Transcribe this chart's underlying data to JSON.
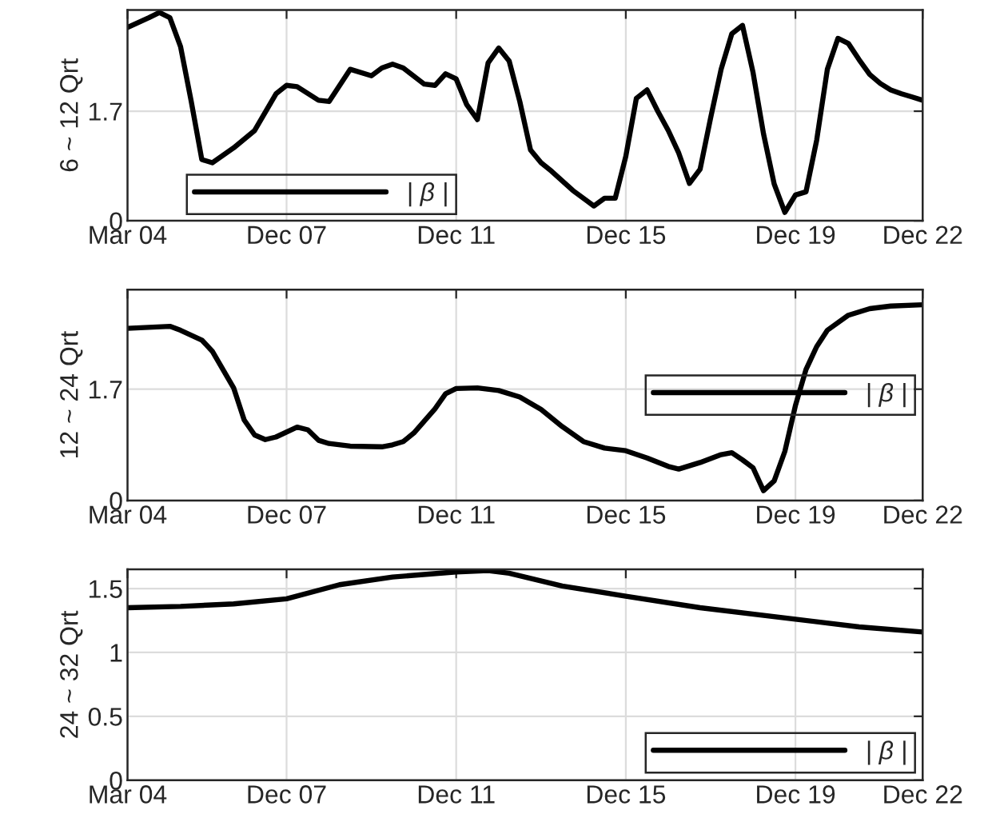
{
  "chart_data": [
    {
      "type": "line",
      "ylabel": "6 ~ 12 Qrt",
      "x": [
        "2004-03",
        "2004-09",
        "2004-12",
        "2005-03",
        "2005-06",
        "2005-09",
        "2005-12",
        "2006-03",
        "2006-09",
        "2007-03",
        "2007-09",
        "2007-12",
        "2008-03",
        "2008-09",
        "2008-12",
        "2009-06",
        "2009-12",
        "2010-03",
        "2010-06",
        "2010-09",
        "2011-03",
        "2011-06",
        "2011-09",
        "2011-12",
        "2012-03",
        "2012-06",
        "2012-09",
        "2012-12",
        "2013-03",
        "2013-06",
        "2013-09",
        "2013-12",
        "2014-03",
        "2014-09",
        "2015-03",
        "2015-06",
        "2015-09",
        "2015-12",
        "2016-03",
        "2016-06",
        "2016-09",
        "2016-12",
        "2017-03",
        "2017-06",
        "2017-09",
        "2017-12",
        "2018-03",
        "2018-06",
        "2018-09",
        "2018-12",
        "2019-03",
        "2019-06",
        "2019-09",
        "2019-12",
        "2020-03",
        "2020-06",
        "2020-09",
        "2020-12",
        "2021-03",
        "2021-06",
        "2021-09",
        "2021-12",
        "2022-03",
        "2022-06",
        "2022-09",
        "2022-12"
      ],
      "series": [
        {
          "name": "| β |",
          "color": "#000000",
          "values": [
            3.0,
            3.15,
            3.23,
            3.15,
            2.7,
            1.85,
            0.95,
            0.9,
            1.13,
            1.4,
            1.97,
            2.1,
            2.08,
            1.87,
            1.85,
            2.35,
            2.25,
            2.37,
            2.43,
            2.37,
            2.12,
            2.1,
            2.28,
            2.2,
            1.8,
            1.57,
            2.45,
            2.68,
            2.48,
            1.85,
            1.1,
            0.9,
            0.77,
            0.47,
            0.23,
            0.35,
            0.35,
            1.0,
            1.9,
            2.03,
            1.7,
            1.4,
            1.05,
            0.58,
            0.8,
            1.6,
            2.35,
            2.9,
            3.03,
            2.3,
            1.35,
            0.57,
            0.13,
            0.4,
            0.45,
            1.25,
            2.35,
            2.83,
            2.75,
            2.5,
            2.27,
            2.13,
            2.03,
            1.97,
            1.92,
            1.87
          ]
        }
      ],
      "xlim": [
        "2004-03",
        "2022-12"
      ],
      "xticks": [
        {
          "value": "2004-03",
          "label": "Mar 04"
        },
        {
          "value": "2007-12",
          "label": "Dec 07"
        },
        {
          "value": "2011-12",
          "label": "Dec 11"
        },
        {
          "value": "2015-12",
          "label": "Dec 15"
        },
        {
          "value": "2019-12",
          "label": "Dec 19"
        },
        {
          "value": "2022-12",
          "label": "Dec 22"
        }
      ],
      "ylim": [
        0,
        3.27
      ],
      "yticks": [
        0,
        1.7
      ],
      "grid": true,
      "legend": "bottom left",
      "marker": "none",
      "line_style": "solid"
    },
    {
      "type": "line",
      "ylabel": "12 ~ 24 Qrt",
      "x": [
        "2004-03",
        "2005-03",
        "2005-06",
        "2005-12",
        "2006-03",
        "2006-09",
        "2006-12",
        "2007-03",
        "2007-06",
        "2007-09",
        "2008-03",
        "2008-06",
        "2008-09",
        "2008-12",
        "2009-06",
        "2010-03",
        "2010-06",
        "2010-09",
        "2010-12",
        "2011-06",
        "2011-09",
        "2011-12",
        "2012-06",
        "2012-12",
        "2013-06",
        "2013-12",
        "2014-06",
        "2014-12",
        "2015-06",
        "2015-12",
        "2016-06",
        "2016-12",
        "2017-03",
        "2017-09",
        "2018-03",
        "2018-06",
        "2018-09",
        "2018-12",
        "2019-03",
        "2019-06",
        "2019-09",
        "2019-12",
        "2020-03",
        "2020-06",
        "2020-09",
        "2021-03",
        "2021-09",
        "2022-03",
        "2022-12"
      ],
      "series": [
        {
          "name": "| β |",
          "color": "#000000",
          "values": [
            2.63,
            2.66,
            2.6,
            2.45,
            2.28,
            1.72,
            1.23,
            1.0,
            0.93,
            0.97,
            1.12,
            1.08,
            0.92,
            0.87,
            0.83,
            0.82,
            0.85,
            0.9,
            1.03,
            1.4,
            1.63,
            1.71,
            1.72,
            1.68,
            1.58,
            1.39,
            1.13,
            0.9,
            0.8,
            0.76,
            0.65,
            0.52,
            0.48,
            0.58,
            0.7,
            0.73,
            0.62,
            0.5,
            0.15,
            0.3,
            0.75,
            1.45,
            2.0,
            2.35,
            2.6,
            2.83,
            2.93,
            2.97,
            2.99
          ]
        }
      ],
      "xlim": [
        "2004-03",
        "2022-12"
      ],
      "xticks": [
        {
          "value": "2004-03",
          "label": "Mar 04"
        },
        {
          "value": "2007-12",
          "label": "Dec 07"
        },
        {
          "value": "2011-12",
          "label": "Dec 11"
        },
        {
          "value": "2015-12",
          "label": "Dec 15"
        },
        {
          "value": "2019-12",
          "label": "Dec 19"
        },
        {
          "value": "2022-12",
          "label": "Dec 22"
        }
      ],
      "ylim": [
        0,
        3.22
      ],
      "yticks": [
        0,
        1.7
      ],
      "grid": true,
      "legend": "right",
      "marker": "none",
      "line_style": "solid"
    },
    {
      "type": "line",
      "ylabel": "24 ~ 32 Qrt",
      "x": [
        "2004-03",
        "2005-06",
        "2006-09",
        "2007-12",
        "2009-03",
        "2010-06",
        "2011-12",
        "2012-09",
        "2013-03",
        "2014-06",
        "2015-12",
        "2017-09",
        "2019-12",
        "2021-06",
        "2022-12"
      ],
      "series": [
        {
          "name": "| β |",
          "color": "#000000",
          "values": [
            1.35,
            1.36,
            1.38,
            1.42,
            1.53,
            1.59,
            1.63,
            1.64,
            1.62,
            1.52,
            1.44,
            1.35,
            1.26,
            1.2,
            1.16
          ]
        }
      ],
      "xlim": [
        "2004-03",
        "2022-12"
      ],
      "xticks": [
        {
          "value": "2004-03",
          "label": "Mar 04"
        },
        {
          "value": "2007-12",
          "label": "Dec 07"
        },
        {
          "value": "2011-12",
          "label": "Dec 11"
        },
        {
          "value": "2015-12",
          "label": "Dec 15"
        },
        {
          "value": "2019-12",
          "label": "Dec 19"
        },
        {
          "value": "2022-12",
          "label": "Dec 22"
        }
      ],
      "ylim": [
        0,
        1.65
      ],
      "yticks": [
        0,
        0.5,
        1,
        1.5
      ],
      "grid": true,
      "legend": "bottom right",
      "marker": "none",
      "line_style": "solid"
    }
  ]
}
